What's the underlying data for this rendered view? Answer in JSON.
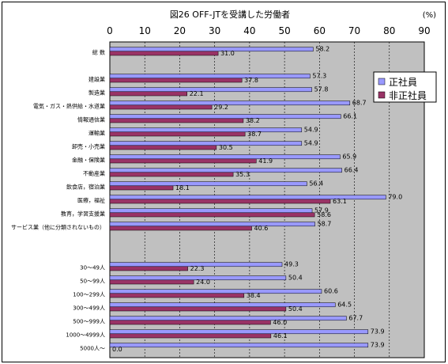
{
  "chart_data": {
    "type": "bar",
    "orientation": "horizontal",
    "title": "図26 OFF-JTを受講した労働者",
    "unit_label": "(%)",
    "xlim": [
      0,
      90
    ],
    "x_ticks": [
      "0",
      "10",
      "20",
      "30",
      "40",
      "50",
      "60",
      "70",
      "80",
      "90"
    ],
    "grid": true,
    "legend_position": "right",
    "categories": [
      "総 数",
      "",
      "建設業",
      "製造業",
      "電気・ガス・熱供給・水道業",
      "情報通信業",
      "運輸業",
      "卸売・小売業",
      "金融・保険業",
      "不動産業",
      "飲食店，宿泊業",
      "医療，福祉",
      "教育，学習支援業",
      "サービス業（他に分類されないもの）",
      "",
      "",
      "30～49人",
      "50～99人",
      "100～299人",
      "300～499人",
      "500～999人",
      "1000～4999人",
      "5000人～"
    ],
    "series": [
      {
        "name": "正社員",
        "color": "#9999ff",
        "values": [
          58.2,
          null,
          57.3,
          57.8,
          68.7,
          66.1,
          54.9,
          54.9,
          65.9,
          66.4,
          56.4,
          79.0,
          57.9,
          58.7,
          null,
          null,
          49.3,
          50.4,
          60.6,
          64.5,
          67.7,
          73.9,
          73.9
        ],
        "labels": [
          "58.2",
          "",
          "57.3",
          "57.8",
          "68.7",
          "66.1",
          "54.9",
          "54.9",
          "65.9",
          "66.4",
          "56.4",
          "79.0",
          "57.9",
          "58.7",
          "",
          "",
          "49.3",
          "50.4",
          "60.6",
          "64.5",
          "67.7",
          "73.9",
          "73.9"
        ]
      },
      {
        "name": "非正社員",
        "color": "#993366",
        "values": [
          31.0,
          null,
          37.8,
          22.1,
          29.2,
          38.2,
          38.7,
          30.5,
          41.9,
          35.3,
          18.1,
          63.1,
          58.6,
          40.6,
          null,
          null,
          22.3,
          24.0,
          38.4,
          50.4,
          46.0,
          46.1,
          0.0
        ],
        "labels": [
          "31.0",
          "",
          "37.8",
          "22.1",
          "29.2",
          "38.2",
          "38.7",
          "30.5",
          "41.9",
          "35.3",
          "18.1",
          "63.1",
          "58.6",
          "40.6",
          "",
          "",
          "22.3",
          "24.0",
          "38.4",
          "50.4",
          "46.0",
          "46.1",
          "0.0"
        ]
      }
    ]
  }
}
